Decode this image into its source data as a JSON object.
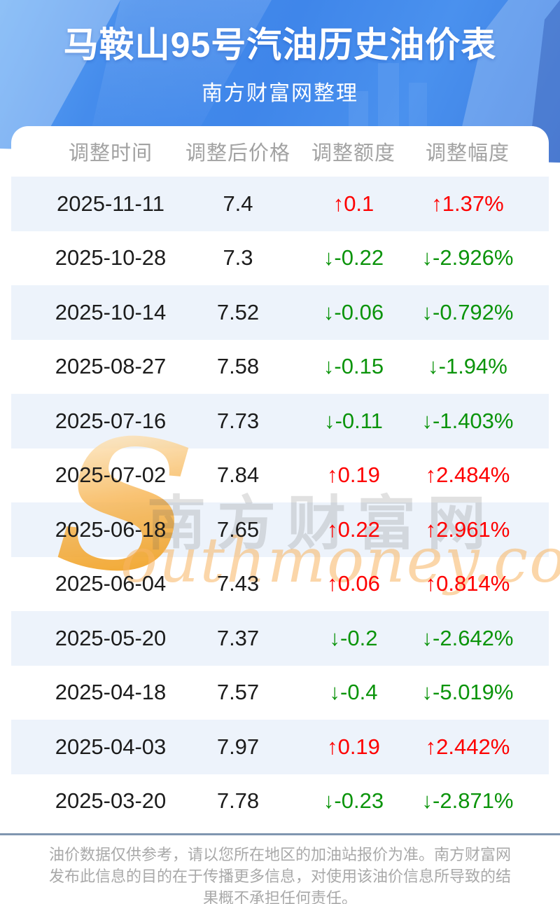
{
  "header": {
    "title": "马鞍山95号汽油历史油价表",
    "subtitle": "南方财富网整理"
  },
  "table": {
    "columns": [
      "调整时间",
      "调整后价格",
      "调整额度",
      "调整幅度"
    ],
    "rows": [
      {
        "date": "2025-11-11",
        "price": "7.4",
        "change": "↑0.1",
        "percent": "↑1.37%",
        "direction": "up"
      },
      {
        "date": "2025-10-28",
        "price": "7.3",
        "change": "↓-0.22",
        "percent": "↓-2.926%",
        "direction": "down"
      },
      {
        "date": "2025-10-14",
        "price": "7.52",
        "change": "↓-0.06",
        "percent": "↓-0.792%",
        "direction": "down"
      },
      {
        "date": "2025-08-27",
        "price": "7.58",
        "change": "↓-0.15",
        "percent": "↓-1.94%",
        "direction": "down"
      },
      {
        "date": "2025-07-16",
        "price": "7.73",
        "change": "↓-0.11",
        "percent": "↓-1.403%",
        "direction": "down"
      },
      {
        "date": "2025-07-02",
        "price": "7.84",
        "change": "↑0.19",
        "percent": "↑2.484%",
        "direction": "up"
      },
      {
        "date": "2025-06-18",
        "price": "7.65",
        "change": "↑0.22",
        "percent": "↑2.961%",
        "direction": "up"
      },
      {
        "date": "2025-06-04",
        "price": "7.43",
        "change": "↑0.06",
        "percent": "↑0.814%",
        "direction": "up"
      },
      {
        "date": "2025-05-20",
        "price": "7.37",
        "change": "↓-0.2",
        "percent": "↓-2.642%",
        "direction": "down"
      },
      {
        "date": "2025-04-18",
        "price": "7.57",
        "change": "↓-0.4",
        "percent": "↓-5.019%",
        "direction": "down"
      },
      {
        "date": "2025-04-03",
        "price": "7.97",
        "change": "↑0.19",
        "percent": "↑2.442%",
        "direction": "up"
      },
      {
        "date": "2025-03-20",
        "price": "7.78",
        "change": "↓-0.23",
        "percent": "↓-2.871%",
        "direction": "down"
      }
    ]
  },
  "chart_data": {
    "type": "table",
    "title": "马鞍山95号汽油历史油价表",
    "columns": [
      "调整时间",
      "调整后价格",
      "调整额度",
      "调整幅度"
    ],
    "x": [
      "2025-11-11",
      "2025-10-28",
      "2025-10-14",
      "2025-08-27",
      "2025-07-16",
      "2025-07-02",
      "2025-06-18",
      "2025-06-04",
      "2025-05-20",
      "2025-04-18",
      "2025-04-03",
      "2025-03-20"
    ],
    "series": [
      {
        "name": "调整后价格",
        "values": [
          7.4,
          7.3,
          7.52,
          7.58,
          7.73,
          7.84,
          7.65,
          7.43,
          7.37,
          7.57,
          7.97,
          7.78
        ]
      },
      {
        "name": "调整额度",
        "values": [
          0.1,
          -0.22,
          -0.06,
          -0.15,
          -0.11,
          0.19,
          0.22,
          0.06,
          -0.2,
          -0.4,
          0.19,
          -0.23
        ]
      },
      {
        "name": "调整幅度(%)",
        "values": [
          1.37,
          -2.926,
          -0.792,
          -1.94,
          -1.403,
          2.484,
          2.961,
          0.814,
          -2.642,
          -5.019,
          2.442,
          -2.871
        ]
      }
    ]
  },
  "watermark": {
    "initial": "S",
    "cn": "南方财富网",
    "en": "outhmoney.com"
  },
  "footer": {
    "disclaimer": "油价数据仅供参考，请以您所在地区的加油站报价为准。南方财富网发布此信息的目的在于传播更多信息，对使用该油价信息所导致的结果概不承担任何责任。"
  },
  "colors": {
    "up": "#fe0000",
    "down": "#0b940b",
    "stripe": "#edf3fb",
    "separator": "#8096b0",
    "header_text": "#a2a2a2",
    "banner_blue": "#3f86ea",
    "watermark_orange": "#f6a93c"
  }
}
